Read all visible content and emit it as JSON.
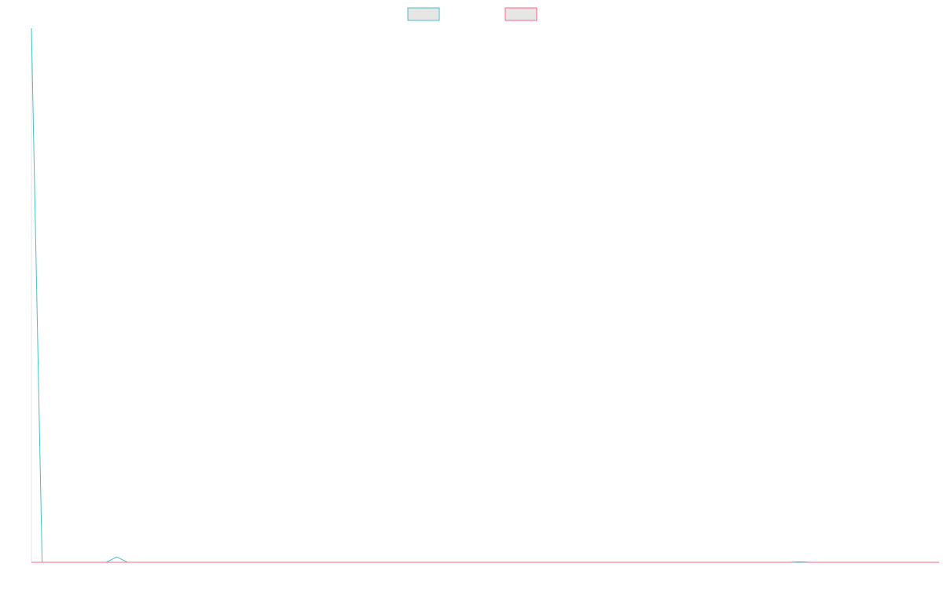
{
  "chart_data": {
    "type": "line",
    "title": "",
    "xlabel": "",
    "ylabel": "",
    "legend_placement": "top-center",
    "grid": false,
    "x_count": 86,
    "ylim": [
      0,
      100
    ],
    "series": [
      {
        "color": "#4bc0c0",
        "fill": "#e6e6e6",
        "values": [
          100,
          0,
          0,
          0,
          0,
          0,
          0,
          0,
          1,
          0,
          0,
          0,
          0,
          0,
          0,
          0,
          0,
          0,
          0,
          0,
          0,
          0,
          0,
          0,
          0,
          0,
          0,
          0,
          0,
          0,
          0,
          0,
          0,
          0,
          0,
          0,
          0,
          0,
          0,
          0,
          0,
          0,
          0,
          0,
          0,
          0,
          0,
          0,
          0,
          0,
          0,
          0,
          0,
          0,
          0,
          0,
          0,
          0,
          0,
          0,
          0,
          0,
          0,
          0,
          0,
          0,
          0,
          0,
          0,
          0,
          0,
          0,
          0,
          0,
          0,
          0,
          0,
          0,
          0,
          0,
          0,
          0,
          0,
          0,
          0,
          0
        ]
      },
      {
        "color": "#ff6384",
        "fill": "#e6e6e6",
        "values": [
          0,
          0,
          0,
          0,
          0,
          0,
          0,
          0,
          0,
          0,
          0,
          0,
          0,
          0,
          0,
          0,
          0,
          0,
          0,
          0,
          0,
          0,
          0,
          0,
          0,
          0,
          0,
          0,
          0,
          0,
          0,
          0,
          0,
          0,
          0,
          0,
          0,
          0,
          0,
          0,
          0,
          0,
          0,
          0,
          0,
          0,
          0,
          0,
          0,
          0,
          0,
          0,
          0,
          0,
          0,
          0,
          0,
          0,
          0,
          0,
          0,
          0,
          0,
          0,
          0,
          0,
          0,
          0,
          0,
          0,
          0,
          0,
          0.1,
          0,
          0,
          0,
          0,
          0,
          0,
          0,
          0,
          0,
          0,
          0,
          0,
          0
        ]
      }
    ]
  }
}
